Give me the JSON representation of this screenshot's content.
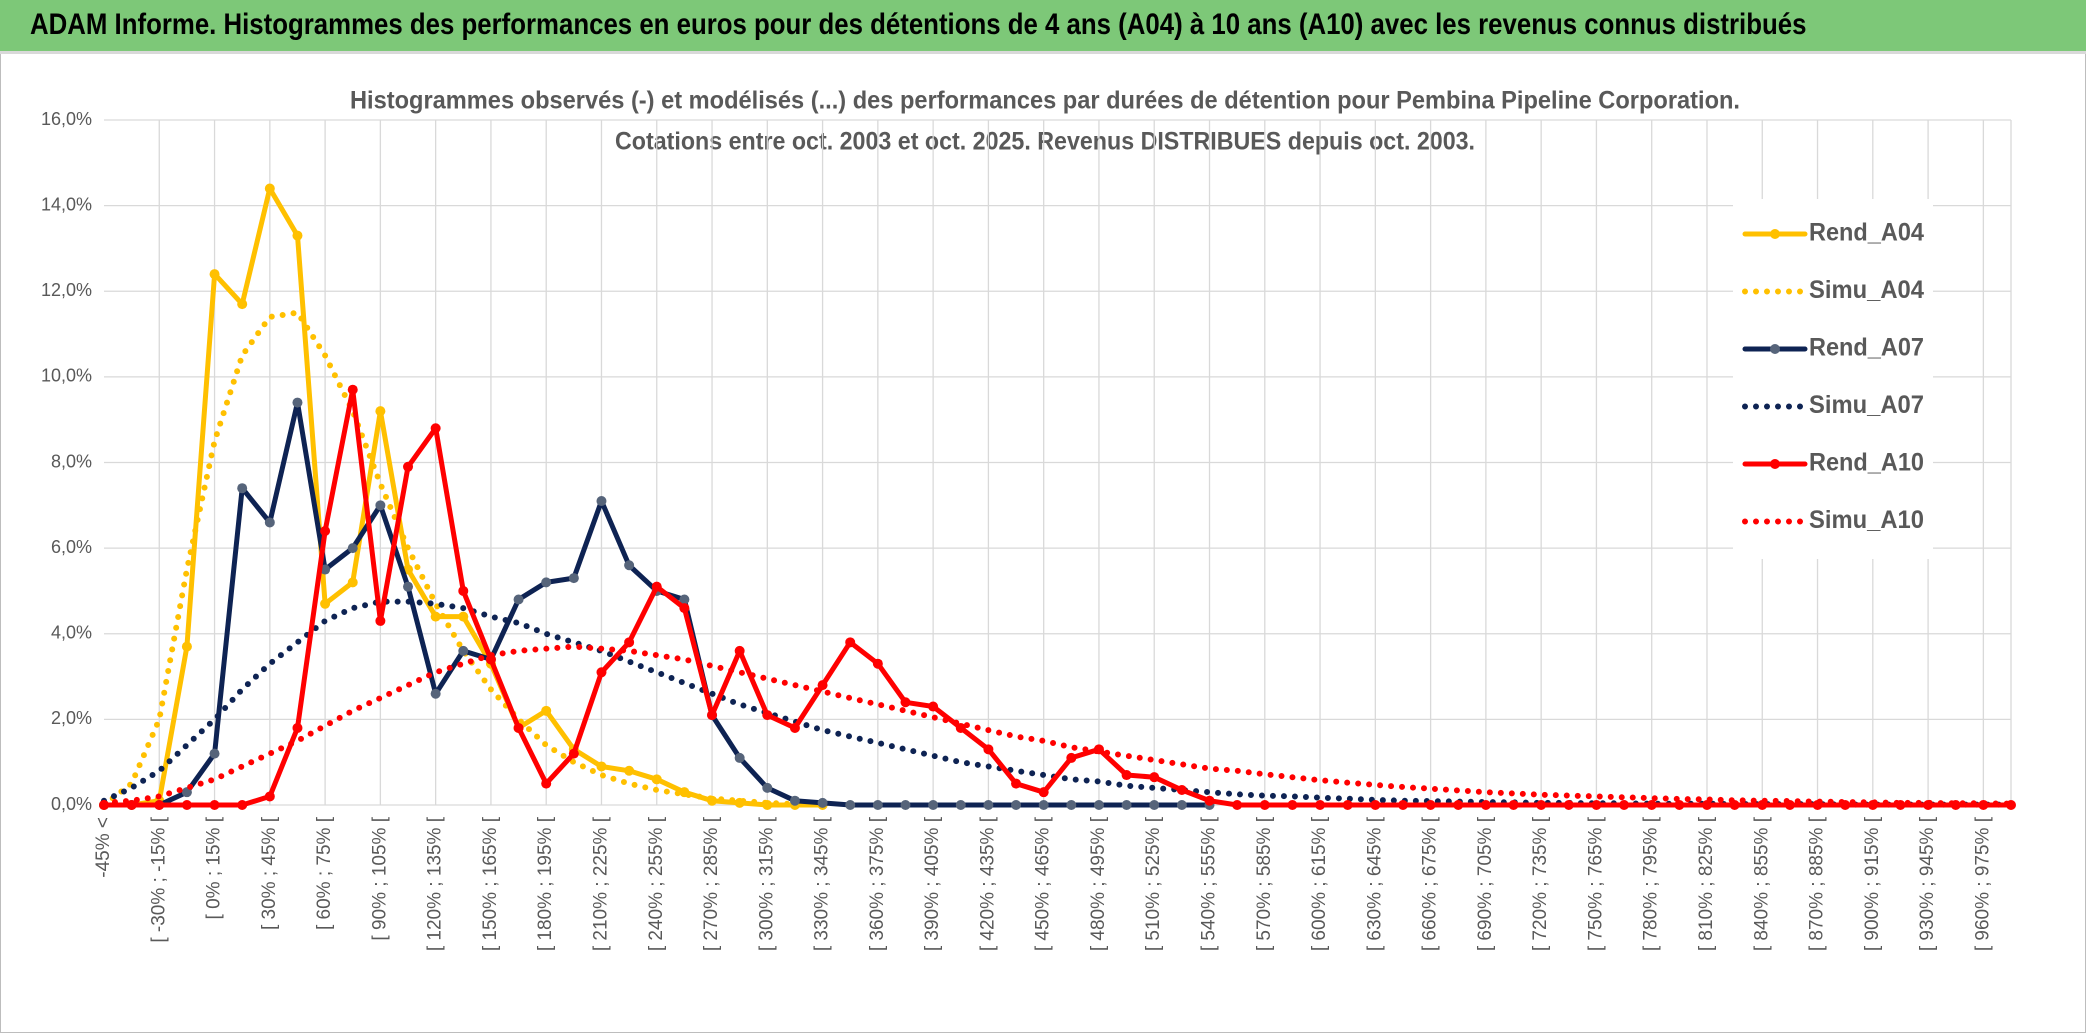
{
  "header": {
    "title": "ADAM Informe. Histogrammes des performances en euros pour des détentions de 4 ans (A04) à 10 ans (A10) avec les revenus connus distribués"
  },
  "chart_data": {
    "type": "line",
    "title": "Histogrammes observés (-) et modélisés (...) des performances par durées de détention pour Pembina Pipeline Corporation.",
    "subtitle": "Cotations entre oct. 2003 et oct. 2025. Revenus DISTRIBUES depuis oct. 2003.",
    "categories": [
      "-45% <",
      null,
      "[ -30% ; -15% [",
      null,
      "[ 0% ; 15% [",
      null,
      "[ 30% ; 45% [",
      null,
      "[ 60% ; 75% [",
      null,
      "[ 90% ; 105% [",
      null,
      "[ 120% ; 135% [",
      null,
      "[ 150% ; 165% [",
      null,
      "[ 180% ; 195% [",
      null,
      "[ 210% ; 225% [",
      null,
      "[ 240% ; 255% [",
      null,
      "[ 270% ; 285% [",
      null,
      "[ 300% ; 315% [",
      null,
      "[ 330% ; 345% [",
      null,
      "[ 360% ; 375% [",
      null,
      "[ 390% ; 405% [",
      null,
      "[ 420% ; 435% [",
      null,
      "[ 450% ; 465% [",
      null,
      "[ 480% ; 495% [",
      null,
      "[ 510% ; 525% [",
      null,
      "[ 540% ; 555% [",
      null,
      "[ 570% ; 585% [",
      null,
      "[ 600% ; 615% [",
      null,
      "[ 630% ; 645% [",
      null,
      "[ 660% ; 675% [",
      null,
      "[ 690% ; 705% [",
      null,
      "[ 720% ; 735% [",
      null,
      "[ 750% ; 765% [",
      null,
      "[ 780% ; 795% [",
      null,
      "[ 810% ; 825% [",
      null,
      "[ 840% ; 855% [",
      null,
      "[ 870% ; 885% [",
      null,
      "[ 900% ; 915% [",
      null,
      "[ 930% ; 945% [",
      null,
      "[ 960% ; 975% [",
      null
    ],
    "ylim": [
      0,
      16
    ],
    "yticks": [
      {
        "value": 0,
        "label": "0,0%"
      },
      {
        "value": 2,
        "label": "2,0%"
      },
      {
        "value": 4,
        "label": "4,0%"
      },
      {
        "value": 6,
        "label": "6,0%"
      },
      {
        "value": 8,
        "label": "8,0%"
      },
      {
        "value": 10,
        "label": "10,0%"
      },
      {
        "value": 12,
        "label": "12,0%"
      },
      {
        "value": 14,
        "label": "14,0%"
      },
      {
        "value": 16,
        "label": "16,0%"
      }
    ],
    "grid": true,
    "legend_position": "upper right",
    "series": [
      {
        "name": "Rend_A04",
        "color": "#ffc000",
        "style": "solid",
        "marker": true,
        "marker_color": "#ffc000",
        "values": [
          0,
          0,
          0.1,
          3.7,
          12.4,
          11.7,
          14.4,
          13.3,
          4.7,
          5.2,
          9.2,
          5.5,
          4.4,
          4.4,
          3.3,
          1.8,
          2.2,
          1.3,
          0.9,
          0.8,
          0.6,
          0.3,
          0.1,
          0.05,
          0,
          0,
          0,
          null,
          null,
          null,
          null,
          null,
          null,
          null,
          null,
          null,
          null,
          null,
          null,
          null,
          null,
          null,
          null,
          null,
          null,
          null,
          null,
          null,
          null,
          null,
          null,
          null,
          null,
          null,
          null,
          null,
          null,
          null,
          null,
          null,
          null,
          null,
          null,
          null,
          null,
          null,
          null,
          null,
          null,
          null
        ]
      },
      {
        "name": "Simu_A04",
        "color": "#ffc000",
        "style": "dotted",
        "marker": false,
        "values": [
          0,
          0.5,
          2.0,
          5.5,
          8.5,
          10.5,
          11.4,
          11.5,
          10.5,
          9.2,
          7.5,
          6.0,
          4.7,
          3.6,
          2.7,
          2.0,
          1.4,
          1.0,
          0.7,
          0.5,
          0.35,
          0.25,
          0.15,
          0.1,
          0.05,
          0.02,
          null,
          null,
          null,
          null,
          null,
          null,
          null,
          null,
          null,
          null,
          null,
          null,
          null,
          null,
          null,
          null,
          null,
          null,
          null,
          null,
          null,
          null,
          null,
          null,
          null,
          null,
          null,
          null,
          null,
          null,
          null,
          null,
          null,
          null,
          null,
          null,
          null,
          null,
          null,
          null,
          null,
          null,
          null,
          null
        ]
      },
      {
        "name": "Rend_A07",
        "color": "#0e2353",
        "style": "solid",
        "marker": true,
        "marker_color": "#56647a",
        "values": [
          0,
          0,
          0,
          0.3,
          1.2,
          7.4,
          6.6,
          9.4,
          5.5,
          6.0,
          7.0,
          5.1,
          2.6,
          3.6,
          3.4,
          4.8,
          5.2,
          5.3,
          7.1,
          5.6,
          5.0,
          4.8,
          2.1,
          1.1,
          0.4,
          0.1,
          0.05,
          0,
          0,
          0,
          0,
          0,
          0,
          0,
          0,
          0,
          0,
          0,
          0,
          0,
          0,
          null,
          null,
          null,
          null,
          null,
          null,
          null,
          null,
          null,
          null,
          null,
          null,
          null,
          null,
          null,
          null,
          null,
          null,
          null,
          null,
          null,
          null,
          null,
          null,
          null,
          null,
          null,
          null,
          null
        ]
      },
      {
        "name": "Simu_A07",
        "color": "#0e2353",
        "style": "dotted",
        "marker": false,
        "values": [
          0.1,
          0.4,
          0.8,
          1.4,
          2.0,
          2.7,
          3.3,
          3.8,
          4.3,
          4.6,
          4.75,
          4.75,
          4.7,
          4.6,
          4.4,
          4.25,
          4.0,
          3.8,
          3.6,
          3.35,
          3.1,
          2.85,
          2.6,
          2.35,
          2.15,
          1.95,
          1.75,
          1.6,
          1.45,
          1.3,
          1.15,
          1.0,
          0.9,
          0.8,
          0.7,
          0.6,
          0.55,
          0.45,
          0.4,
          0.35,
          0.3,
          0.25,
          0.22,
          0.2,
          0.17,
          0.15,
          0.12,
          0.1,
          0.09,
          0.08,
          0.07,
          0.06,
          0.05,
          0.05,
          0.04,
          0.04,
          0.03,
          0.03,
          0.03,
          0.02,
          0.02,
          0.02,
          0.02,
          0.01,
          0.01,
          0.01,
          0.01,
          0.01,
          0.01,
          0.01
        ]
      },
      {
        "name": "Rend_A10",
        "color": "#ff0000",
        "style": "solid",
        "marker": true,
        "marker_color": "#ff0000",
        "values": [
          0,
          0,
          0,
          0,
          0,
          0,
          0.2,
          1.8,
          6.4,
          9.7,
          4.3,
          7.9,
          8.8,
          5.0,
          3.4,
          1.8,
          0.5,
          1.2,
          3.1,
          3.8,
          5.1,
          4.6,
          2.1,
          3.6,
          2.1,
          1.8,
          2.8,
          3.8,
          3.3,
          2.4,
          2.3,
          1.8,
          1.3,
          0.5,
          0.3,
          1.1,
          1.3,
          0.7,
          0.65,
          0.35,
          0.1,
          0,
          0,
          0,
          0,
          0,
          0,
          0,
          0,
          0,
          0,
          0,
          0,
          0,
          0,
          0,
          0,
          0,
          0,
          0,
          0,
          0,
          0,
          0,
          0,
          0,
          0,
          0,
          0,
          0
        ]
      },
      {
        "name": "Simu_A10",
        "color": "#ff0000",
        "style": "dotted",
        "marker": false,
        "values": [
          0.05,
          0.1,
          0.2,
          0.4,
          0.6,
          0.9,
          1.2,
          1.5,
          1.85,
          2.2,
          2.5,
          2.8,
          3.1,
          3.3,
          3.5,
          3.6,
          3.65,
          3.7,
          3.65,
          3.6,
          3.5,
          3.4,
          3.25,
          3.1,
          2.95,
          2.8,
          2.65,
          2.5,
          2.35,
          2.2,
          2.05,
          1.9,
          1.75,
          1.6,
          1.5,
          1.35,
          1.25,
          1.15,
          1.05,
          0.95,
          0.85,
          0.8,
          0.72,
          0.65,
          0.58,
          0.52,
          0.47,
          0.42,
          0.38,
          0.34,
          0.3,
          0.27,
          0.24,
          0.22,
          0.2,
          0.18,
          0.16,
          0.14,
          0.13,
          0.11,
          0.1,
          0.09,
          0.08,
          0.07,
          0.06,
          0.05,
          0.05,
          0.04,
          0.04,
          0.03
        ]
      }
    ]
  }
}
